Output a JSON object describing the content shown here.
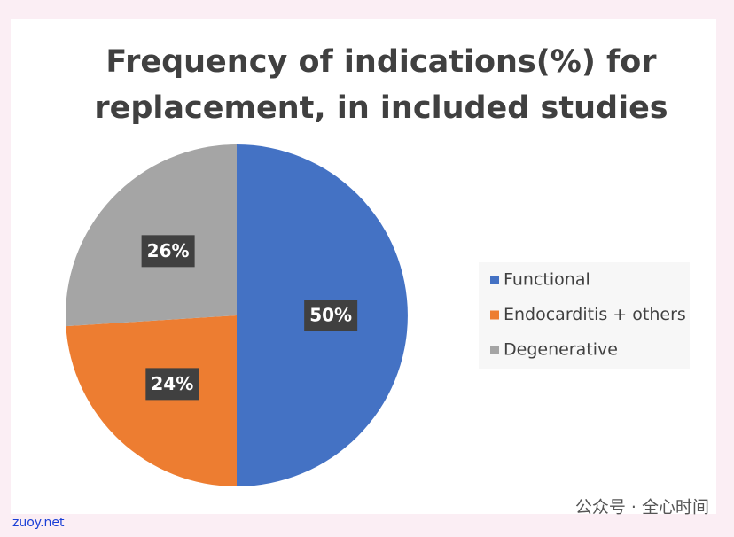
{
  "chart_data": {
    "type": "pie",
    "title": "Frequency of indications(%) for replacement, in included studies",
    "categories": [
      "Functional",
      "Endocarditis + others",
      "Degenerative"
    ],
    "values": [
      50,
      24,
      26
    ],
    "value_labels": [
      "50%",
      "24%",
      "26%"
    ],
    "colors": [
      "#4472c4",
      "#ed7d31",
      "#a5a5a5"
    ],
    "legend": "right"
  },
  "watermarks": [
    "zuoy.net",
    "公众号 · 全心时间"
  ]
}
